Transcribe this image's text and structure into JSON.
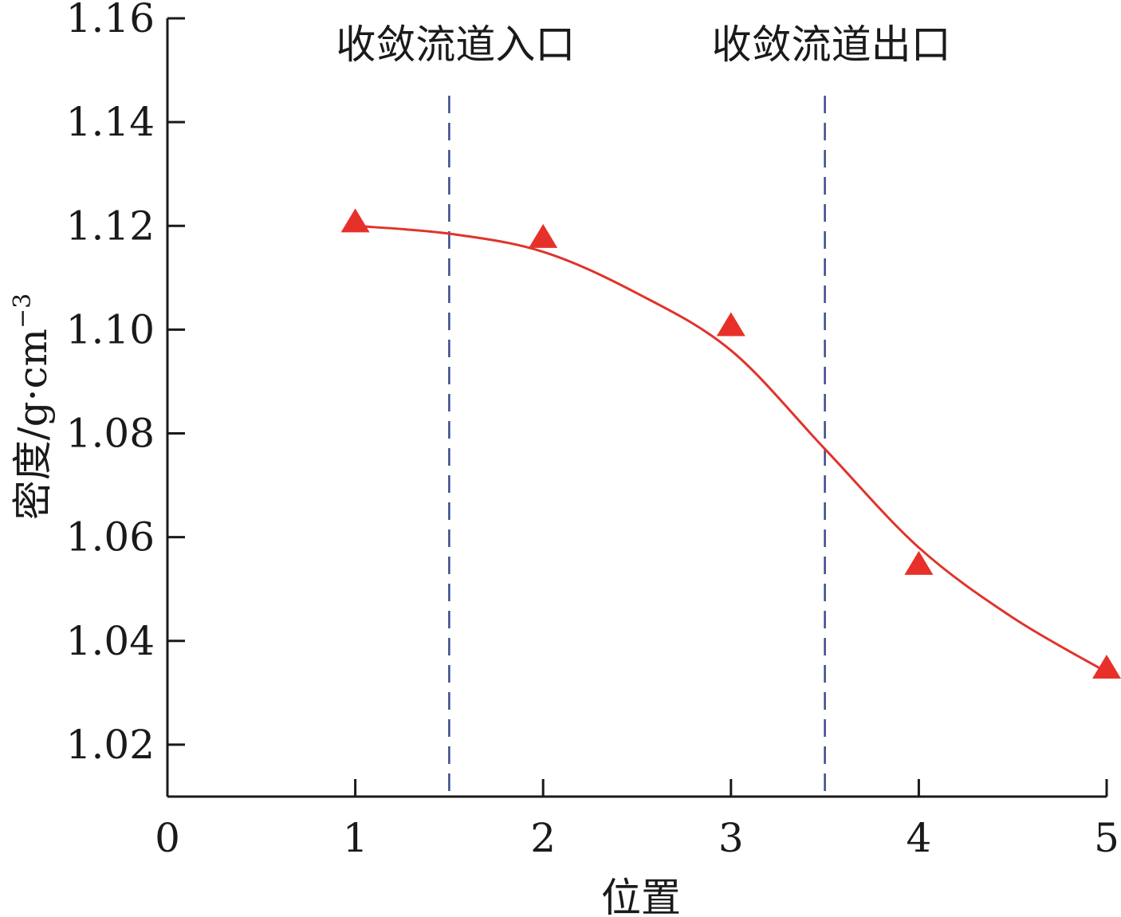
{
  "chart_data": {
    "type": "line",
    "xlabel": "位置",
    "ylabel": {
      "main": "密度/g·cm",
      "superscript": "−3"
    },
    "xlim": [
      0,
      5
    ],
    "ylim": [
      1.01,
      1.16
    ],
    "x_ticks": [
      0,
      1,
      2,
      3,
      4,
      5
    ],
    "x_tick_labels": [
      "0",
      "1",
      "2",
      "3",
      "4",
      "5"
    ],
    "y_ticks": [
      1.02,
      1.04,
      1.06,
      1.08,
      1.1,
      1.12,
      1.14,
      1.16
    ],
    "y_tick_labels": [
      "1.02",
      "1.04",
      "1.06",
      "1.08",
      "1.10",
      "1.12",
      "1.14",
      "1.16"
    ],
    "grid": false,
    "series": [
      {
        "marker": "triangle",
        "color": "#e8302a",
        "x": [
          1,
          2,
          3,
          4,
          5
        ],
        "y": [
          1.1205,
          1.1175,
          1.1005,
          1.0545,
          1.0345
        ]
      }
    ],
    "fit_curve": {
      "color": "#e0332b",
      "x": [
        1,
        1.5,
        2,
        2.5,
        3,
        3.5,
        4,
        4.5,
        5
      ],
      "y": [
        1.12,
        1.1185,
        1.115,
        1.107,
        1.096,
        1.077,
        1.058,
        1.0445,
        1.034
      ]
    },
    "reference_lines": [
      {
        "x": 1.5,
        "label": "收敛流道入口",
        "color": "#3a4a8a"
      },
      {
        "x": 3.5,
        "label": "收敛流道出口",
        "color": "#3a4a8a"
      }
    ]
  }
}
